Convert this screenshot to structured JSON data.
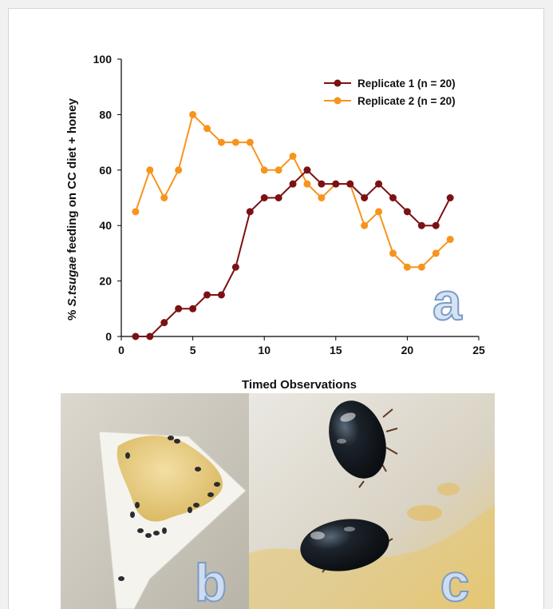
{
  "chart_data": {
    "type": "line",
    "xlabel": "Timed Observations",
    "ylabel_pre": "% ",
    "ylabel_italic": "S.tsugae",
    "ylabel_post": " feeding on CC diet + honey",
    "xlim": [
      0,
      25
    ],
    "ylim": [
      0,
      100
    ],
    "xticks": [
      0,
      5,
      10,
      15,
      20,
      25
    ],
    "yticks": [
      0,
      20,
      40,
      60,
      80,
      100
    ],
    "grid": false,
    "legend_position": "top-right",
    "panel_label": "a",
    "x": [
      1,
      2,
      3,
      4,
      5,
      6,
      7,
      8,
      9,
      10,
      11,
      12,
      13,
      14,
      15,
      16,
      17,
      18,
      19,
      20,
      21,
      22,
      23
    ],
    "series": [
      {
        "name": "Replicate 1 (n = 20)",
        "color": "#7b1113",
        "values": [
          0,
          0,
          5,
          10,
          10,
          15,
          15,
          25,
          45,
          50,
          50,
          55,
          60,
          55,
          55,
          55,
          50,
          55,
          50,
          45,
          40,
          40,
          50
        ]
      },
      {
        "name": "Replicate 2 (n = 20)",
        "color": "#f7941d",
        "values": [
          45,
          60,
          50,
          60,
          80,
          75,
          70,
          70,
          70,
          60,
          60,
          65,
          55,
          50,
          55,
          55,
          40,
          45,
          30,
          25,
          25,
          30,
          35
        ]
      }
    ]
  },
  "photos": {
    "b_label": "b",
    "c_label": "c"
  }
}
